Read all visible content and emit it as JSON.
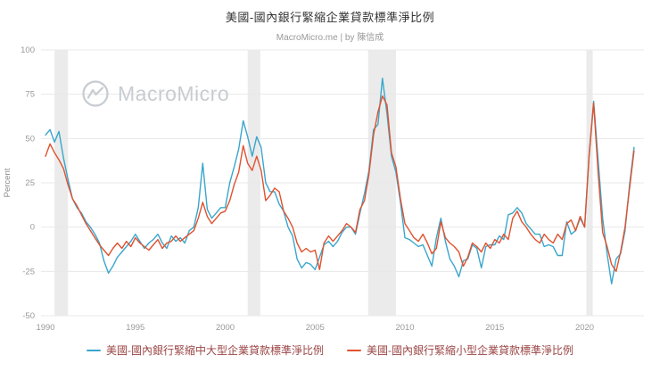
{
  "colors": {
    "band": "#ebebeb",
    "grid": "#e8e8e8",
    "axis_text": "#999999",
    "ylabel_text": "#8a8a8a",
    "legend_text": "#9b4545",
    "watermark": "#c7ccd1"
  },
  "watermark": {
    "text": "MacroMicro"
  },
  "chart_data": {
    "type": "line",
    "title": "美國-國內銀行緊縮企業貸款標準淨比例",
    "subtitle": "MacroMicro.me | by 陳信成",
    "xlabel": "",
    "ylabel": "Percent",
    "x_start": 1990,
    "x_step": 0.25,
    "xlim": [
      1989.75,
      2023.3
    ],
    "ylim": [
      -50,
      100
    ],
    "y_ticks": [
      100,
      75,
      50,
      25,
      0,
      -25,
      -50
    ],
    "x_ticks": [
      1990,
      1995,
      2000,
      2005,
      2010,
      2015,
      2020
    ],
    "grid": "horizontal",
    "legend_position": "bottom",
    "recession_bands": [
      [
        1990.5,
        1991.25
      ],
      [
        2001.25,
        2001.95
      ],
      [
        2007.95,
        2009.5
      ],
      [
        2020.1,
        2020.45
      ]
    ],
    "series": [
      {
        "name": "美國-國內銀行緊縮中大型企業貸款標準淨比例",
        "color": "#3aa6cc",
        "values": [
          52,
          55,
          48,
          54,
          39,
          27,
          16,
          11,
          8,
          3,
          0,
          -4,
          -9,
          -19,
          -26,
          -22,
          -17,
          -14,
          -11,
          -8,
          -4,
          -8,
          -12,
          -9,
          -7,
          -4,
          -9,
          -12,
          -5,
          -8,
          -6,
          -9,
          -2,
          0,
          11,
          36,
          10,
          5,
          8,
          11,
          11,
          25,
          34,
          44,
          60,
          51,
          40,
          51,
          45,
          25,
          20,
          20,
          13,
          9,
          0,
          -5,
          -18,
          -23,
          -20,
          -21,
          -24,
          -17,
          -10,
          -8,
          -11,
          -8,
          -3,
          0,
          0,
          -4,
          8,
          19,
          32,
          55,
          58,
          84,
          64,
          40,
          31,
          14,
          -6,
          -7,
          -9,
          -11,
          -10,
          -16,
          -22,
          -6,
          5,
          -8,
          -18,
          -22,
          -28,
          -19,
          -18,
          -10,
          -12,
          -23,
          -11,
          -10,
          -10,
          -5,
          -7,
          7,
          8,
          11,
          8,
          2,
          -1,
          -4,
          -4,
          -11,
          -10,
          -11,
          -16,
          -16,
          3,
          -4,
          -2,
          5,
          0,
          41,
          71,
          38,
          5,
          -15,
          -32,
          -18,
          -15,
          -2,
          24,
          45
        ]
      },
      {
        "name": "美國-國內銀行緊縮小型企業貸款標準淨比例",
        "color": "#e0522f",
        "values": [
          40,
          47,
          42,
          38,
          33,
          24,
          16,
          12,
          7,
          2,
          -2,
          -6,
          -10,
          -13,
          -16,
          -12,
          -9,
          -12,
          -8,
          -11,
          -6,
          -9,
          -11,
          -13,
          -10,
          -7,
          -12,
          -9,
          -8,
          -5,
          -8,
          -6,
          -4,
          -2,
          5,
          14,
          6,
          2,
          5,
          8,
          9,
          15,
          24,
          31,
          46,
          36,
          32,
          40,
          32,
          15,
          18,
          22,
          20,
          9,
          5,
          0,
          -9,
          -14,
          -12,
          -14,
          -13,
          -24,
          -9,
          -5,
          -8,
          -5,
          -2,
          2,
          0,
          -3,
          10,
          15,
          30,
          52,
          65,
          74,
          69,
          42,
          34,
          16,
          2,
          -2,
          -6,
          -8,
          -4,
          -9,
          -15,
          -12,
          3,
          -6,
          -9,
          -11,
          -14,
          -22,
          -17,
          -9,
          -11,
          -14,
          -9,
          -12,
          -7,
          -9,
          -4,
          -7,
          5,
          9,
          3,
          0,
          -4,
          -7,
          -9,
          -4,
          -7,
          -9,
          -4,
          -7,
          2,
          4,
          -2,
          6,
          0,
          40,
          70,
          31,
          -3,
          -11,
          -21,
          -25,
          -14,
          0,
          22,
          43
        ]
      }
    ]
  }
}
